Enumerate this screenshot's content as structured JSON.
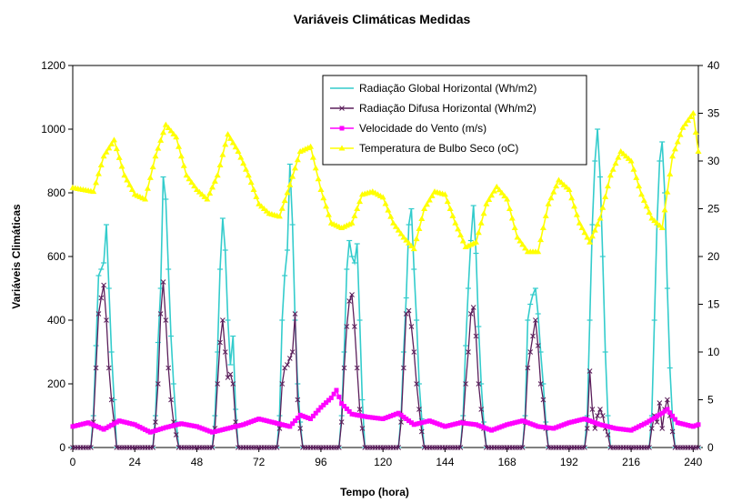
{
  "chart_data": {
    "type": "line",
    "title": "Variáveis Climáticas Medidas",
    "xlabel": "Tempo (hora)",
    "ylabel": "Variáveis Climáticas",
    "y2label": "",
    "xlim": [
      0,
      242
    ],
    "ylim": [
      0,
      1200
    ],
    "y2lim": [
      0,
      40
    ],
    "x_ticks": [
      0,
      24,
      48,
      72,
      96,
      120,
      144,
      168,
      192,
      216,
      240
    ],
    "y_ticks": [
      0,
      200,
      400,
      600,
      800,
      1000,
      1200
    ],
    "y2_ticks": [
      0,
      5,
      10,
      15,
      20,
      25,
      30,
      35,
      40
    ],
    "grid": false,
    "legend_position": "top-right",
    "series": [
      {
        "name": "Radiação Global Horizontal (Wh/m2)",
        "axis": "left",
        "color": "#33cccc",
        "marker": "dash",
        "days": [
          {
            "start": 8,
            "hours": [
              100,
              320,
              540,
              560,
              580,
              700,
              500,
              300,
              150
            ]
          },
          {
            "start": 32,
            "hours": [
              100,
              330,
              500,
              850,
              780,
              560,
              350,
              200,
              80
            ]
          },
          {
            "start": 55,
            "hours": [
              100,
              300,
              560,
              720,
              620,
              400,
              260,
              350,
              120
            ]
          },
          {
            "start": 80,
            "hours": [
              100,
              400,
              540,
              620,
              890,
              700,
              400,
              200,
              80
            ]
          },
          {
            "start": 104,
            "hours": [
              100,
              300,
              560,
              650,
              600,
              580,
              640,
              400,
              150
            ]
          },
          {
            "start": 127,
            "hours": [
              100,
              300,
              470,
              700,
              750,
              560,
              400,
              200,
              90
            ]
          },
          {
            "start": 151,
            "hours": [
              100,
              320,
              500,
              650,
              760,
              610,
              380,
              200,
              80
            ]
          },
          {
            "start": 175,
            "hours": [
              100,
              400,
              450,
              480,
              500,
              420,
              300,
              200,
              80
            ]
          },
          {
            "start": 199,
            "hours": [
              100,
              400,
              700,
              900,
              1000,
              850,
              600,
              300,
              100
            ]
          },
          {
            "start": 224,
            "hours": [
              100,
              400,
              700,
              900,
              960,
              800,
              500,
              250,
              90
            ]
          }
        ]
      },
      {
        "name": "Radiação Difusa Horizontal (Wh/m2)",
        "axis": "left",
        "color": "#5b1f5b",
        "marker": "x",
        "days": [
          {
            "start": 8,
            "hours": [
              80,
              250,
              420,
              470,
              510,
              400,
              250,
              150,
              80
            ]
          },
          {
            "start": 32,
            "hours": [
              80,
              200,
              420,
              520,
              400,
              250,
              150,
              80,
              40
            ]
          },
          {
            "start": 55,
            "hours": [
              60,
              200,
              330,
              400,
              300,
              220,
              230,
              200,
              80
            ]
          },
          {
            "start": 80,
            "hours": [
              60,
              200,
              250,
              260,
              280,
              300,
              420,
              150,
              60
            ]
          },
          {
            "start": 104,
            "hours": [
              80,
              250,
              380,
              460,
              480,
              380,
              250,
              120,
              60
            ]
          },
          {
            "start": 127,
            "hours": [
              80,
              250,
              420,
              430,
              380,
              300,
              200,
              120,
              50
            ]
          },
          {
            "start": 151,
            "hours": [
              80,
              200,
              300,
              420,
              440,
              350,
              200,
              120,
              60
            ]
          },
          {
            "start": 175,
            "hours": [
              80,
              250,
              300,
              350,
              400,
              320,
              200,
              150,
              60
            ]
          },
          {
            "start": 199,
            "hours": [
              60,
              240,
              120,
              60,
              100,
              120,
              100,
              60,
              40
            ]
          },
          {
            "start": 224,
            "hours": [
              60,
              100,
              80,
              140,
              60,
              120,
              150,
              100,
              50
            ]
          }
        ]
      },
      {
        "name": "Velocidade do Vento (m/s)",
        "axis": "right",
        "color": "#ff00ff",
        "marker": "square",
        "control_points": [
          [
            0,
            2.2
          ],
          [
            6,
            2.6
          ],
          [
            12,
            1.9
          ],
          [
            18,
            2.8
          ],
          [
            24,
            2.4
          ],
          [
            30,
            1.6
          ],
          [
            36,
            2.1
          ],
          [
            42,
            2.5
          ],
          [
            48,
            2.2
          ],
          [
            54,
            1.6
          ],
          [
            60,
            2.0
          ],
          [
            66,
            2.4
          ],
          [
            72,
            3.0
          ],
          [
            78,
            2.6
          ],
          [
            84,
            2.2
          ],
          [
            88,
            3.4
          ],
          [
            92,
            3.0
          ],
          [
            96,
            4.2
          ],
          [
            100,
            5.2
          ],
          [
            102,
            6.0
          ],
          [
            104,
            4.6
          ],
          [
            108,
            3.5
          ],
          [
            114,
            3.2
          ],
          [
            120,
            3.0
          ],
          [
            126,
            3.6
          ],
          [
            132,
            2.4
          ],
          [
            138,
            2.8
          ],
          [
            144,
            2.2
          ],
          [
            150,
            2.6
          ],
          [
            156,
            2.4
          ],
          [
            162,
            1.8
          ],
          [
            168,
            2.4
          ],
          [
            174,
            2.8
          ],
          [
            180,
            2.2
          ],
          [
            186,
            2.0
          ],
          [
            192,
            2.6
          ],
          [
            198,
            3.0
          ],
          [
            204,
            2.4
          ],
          [
            210,
            2.0
          ],
          [
            216,
            1.8
          ],
          [
            222,
            2.6
          ],
          [
            228,
            3.6
          ],
          [
            230,
            4.0
          ],
          [
            234,
            2.6
          ],
          [
            240,
            2.2
          ],
          [
            242,
            2.4
          ]
        ]
      },
      {
        "name": "Temperatura de Bulbo Seco (oC)",
        "axis": "right",
        "color": "#ffff00",
        "marker": "triangle",
        "control_points": [
          [
            0,
            27.2
          ],
          [
            4,
            27.0
          ],
          [
            8,
            26.8
          ],
          [
            12,
            30.5
          ],
          [
            16,
            32.2
          ],
          [
            20,
            28.5
          ],
          [
            24,
            26.5
          ],
          [
            28,
            26.0
          ],
          [
            32,
            30.5
          ],
          [
            36,
            33.8
          ],
          [
            40,
            32.5
          ],
          [
            44,
            28.5
          ],
          [
            48,
            27.0
          ],
          [
            52,
            26.0
          ],
          [
            56,
            28.5
          ],
          [
            60,
            32.8
          ],
          [
            64,
            31.0
          ],
          [
            68,
            28.5
          ],
          [
            72,
            25.5
          ],
          [
            76,
            24.5
          ],
          [
            80,
            24.2
          ],
          [
            84,
            27.5
          ],
          [
            88,
            31.0
          ],
          [
            92,
            31.5
          ],
          [
            96,
            27.0
          ],
          [
            100,
            23.5
          ],
          [
            104,
            23.0
          ],
          [
            108,
            23.5
          ],
          [
            112,
            26.5
          ],
          [
            116,
            26.8
          ],
          [
            120,
            26.2
          ],
          [
            124,
            23.5
          ],
          [
            128,
            22.0
          ],
          [
            132,
            20.8
          ],
          [
            136,
            25.0
          ],
          [
            140,
            26.8
          ],
          [
            144,
            26.5
          ],
          [
            148,
            23.5
          ],
          [
            152,
            21.0
          ],
          [
            156,
            21.5
          ],
          [
            160,
            25.5
          ],
          [
            164,
            27.3
          ],
          [
            168,
            26.0
          ],
          [
            172,
            22.0
          ],
          [
            176,
            20.5
          ],
          [
            180,
            20.5
          ],
          [
            184,
            25.5
          ],
          [
            188,
            28.0
          ],
          [
            192,
            27.0
          ],
          [
            196,
            23.5
          ],
          [
            200,
            21.5
          ],
          [
            204,
            24.0
          ],
          [
            208,
            28.5
          ],
          [
            212,
            31.0
          ],
          [
            216,
            30.0
          ],
          [
            220,
            26.5
          ],
          [
            224,
            24.0
          ],
          [
            228,
            23.0
          ],
          [
            232,
            30.5
          ],
          [
            236,
            33.5
          ],
          [
            240,
            35.0
          ],
          [
            242,
            31.0
          ],
          [
            244,
            29.0
          ]
        ]
      }
    ]
  }
}
